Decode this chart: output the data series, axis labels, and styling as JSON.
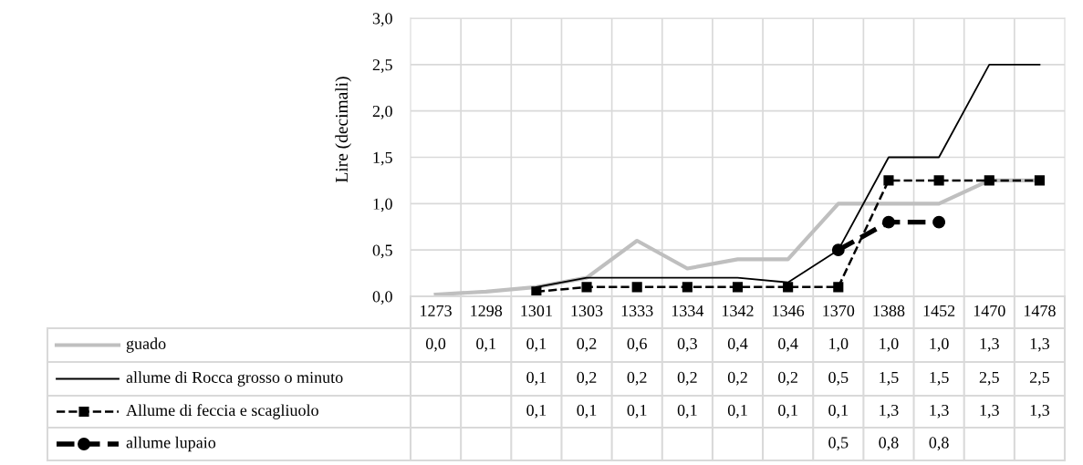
{
  "chart_data": {
    "type": "line",
    "ylabel": "Lire (decimali)",
    "categories": [
      "1273",
      "1298",
      "1301",
      "1303",
      "1333",
      "1334",
      "1342",
      "1346",
      "1370",
      "1388",
      "1452",
      "1470",
      "1478"
    ],
    "series": [
      {
        "name": "guado",
        "color": "#bfbfbf",
        "marker": "none",
        "line_style": "solid",
        "values": [
          0.02,
          0.05,
          0.1,
          0.2,
          0.6,
          0.3,
          0.4,
          0.4,
          1.0,
          1.0,
          1.0,
          1.25,
          1.25
        ],
        "value_labels": [
          "0,0",
          "0,1",
          "0,1",
          "0,2",
          "0,6",
          "0,3",
          "0,4",
          "0,4",
          "1,0",
          "1,0",
          "1,0",
          "1,3",
          "1,3"
        ]
      },
      {
        "name": "allume di Rocca grosso o minuto",
        "color": "#000000",
        "marker": "none",
        "line_style": "solid",
        "values": [
          null,
          null,
          0.1,
          0.2,
          0.2,
          0.2,
          0.2,
          0.15,
          0.5,
          1.5,
          1.5,
          2.5,
          2.5
        ],
        "value_labels": [
          null,
          null,
          "0,1",
          "0,2",
          "0,2",
          "0,2",
          "0,2",
          "0,2",
          "0,5",
          "1,5",
          "1,5",
          "2,5",
          "2,5"
        ]
      },
      {
        "name": "Allume di feccia e scagliuolo",
        "color": "#000000",
        "marker": "square",
        "line_style": "dashed",
        "values": [
          null,
          null,
          0.05,
          0.1,
          0.1,
          0.1,
          0.1,
          0.1,
          0.1,
          1.25,
          1.25,
          1.25,
          1.25
        ],
        "value_labels": [
          null,
          null,
          "0,1",
          "0,1",
          "0,1",
          "0,1",
          "0,1",
          "0,1",
          "0,1",
          "1,3",
          "1,3",
          "1,3",
          "1,3"
        ]
      },
      {
        "name": "allume lupaio",
        "color": "#000000",
        "marker": "circle",
        "line_style": "dashed",
        "values": [
          null,
          null,
          null,
          null,
          null,
          null,
          null,
          null,
          0.5,
          0.8,
          0.8,
          null,
          null
        ],
        "value_labels": [
          null,
          null,
          null,
          null,
          null,
          null,
          null,
          null,
          "0,5",
          "0,8",
          "0,8",
          null,
          null
        ]
      }
    ],
    "ylim": [
      0,
      3
    ],
    "yticks": [
      {
        "value": 0,
        "label": "0,0"
      },
      {
        "value": 0.5,
        "label": "0,5"
      },
      {
        "value": 1,
        "label": "1,0"
      },
      {
        "value": 1.5,
        "label": "1,5"
      },
      {
        "value": 2,
        "label": "2,0"
      },
      {
        "value": 2.5,
        "label": "2,5"
      },
      {
        "value": 3,
        "label": "3,0"
      }
    ],
    "grid": true,
    "legend": "bottom"
  }
}
